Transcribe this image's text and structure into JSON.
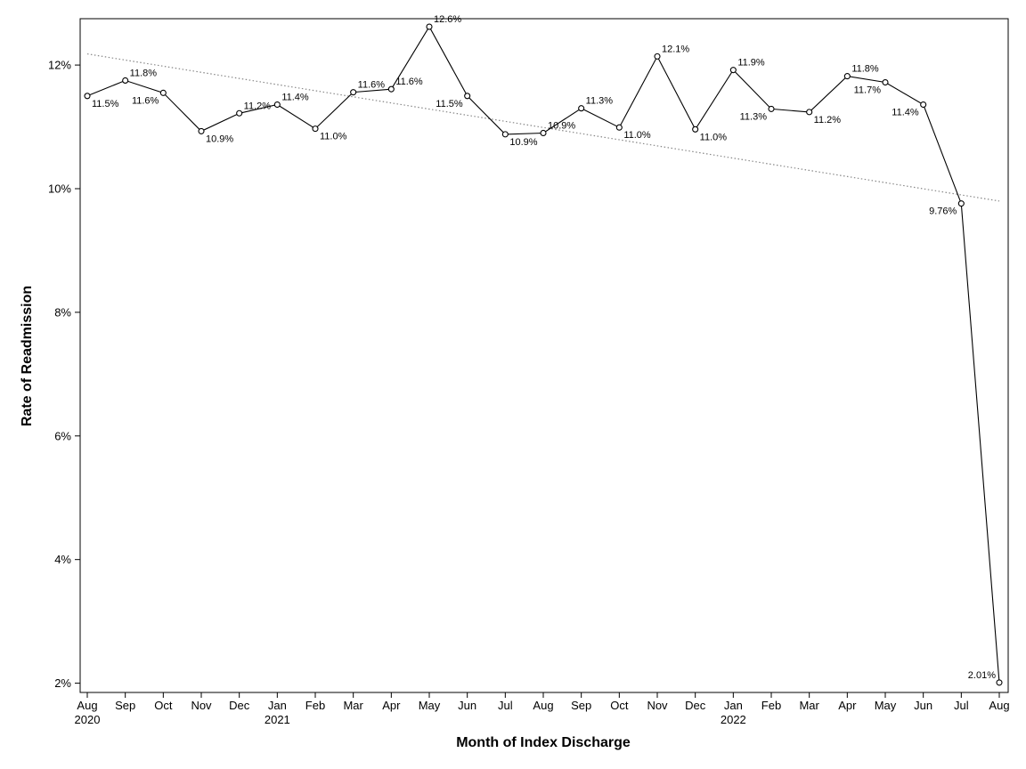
{
  "chart_data": {
    "type": "line",
    "title": "",
    "xlabel": "Month of Index Discharge",
    "ylabel": "Rate of Readmission",
    "x": [
      "Aug",
      "Sep",
      "Oct",
      "Nov",
      "Dec",
      "Jan",
      "Feb",
      "Mar",
      "Apr",
      "May",
      "Jun",
      "Jul",
      "Aug",
      "Sep",
      "Oct",
      "Nov",
      "Dec",
      "Jan",
      "Feb",
      "Mar",
      "Apr",
      "May",
      "Jun",
      "Jul",
      "Aug"
    ],
    "year_labels": [
      {
        "index": 0,
        "label": "2020"
      },
      {
        "index": 5,
        "label": "2021"
      },
      {
        "index": 17,
        "label": "2022"
      }
    ],
    "series": [
      {
        "values": [
          11.5,
          11.75,
          11.55,
          10.93,
          11.22,
          11.36,
          10.97,
          11.56,
          11.61,
          12.62,
          11.5,
          10.88,
          10.9,
          11.3,
          10.99,
          12.14,
          10.96,
          11.92,
          11.29,
          11.24,
          11.82,
          11.72,
          11.36,
          9.76,
          2.01
        ],
        "labels": [
          "11.5%",
          "11.8%",
          "11.6%",
          "10.9%",
          "11.2%",
          "11.4%",
          "11.0%",
          "11.6%",
          "11.6%",
          "12.6%",
          "11.5%",
          "10.9%",
          "10.9%",
          "11.3%",
          "11.0%",
          "12.1%",
          "11.0%",
          "11.9%",
          "11.3%",
          "11.2%",
          "11.8%",
          "11.7%",
          "11.4%",
          "9.76%",
          "2.01%"
        ],
        "color": "#000000",
        "marker": "circle"
      }
    ],
    "trend_line": {
      "start": 12.18,
      "end": 9.8,
      "style": "dotted",
      "color": "#888888"
    },
    "yticks": [
      2,
      4,
      6,
      8,
      10,
      12
    ],
    "ytick_labels": [
      "2%",
      "4%",
      "6%",
      "8%",
      "10%",
      "12%"
    ],
    "ylim": [
      1.85,
      12.75
    ],
    "grid": false,
    "legend": "none"
  }
}
